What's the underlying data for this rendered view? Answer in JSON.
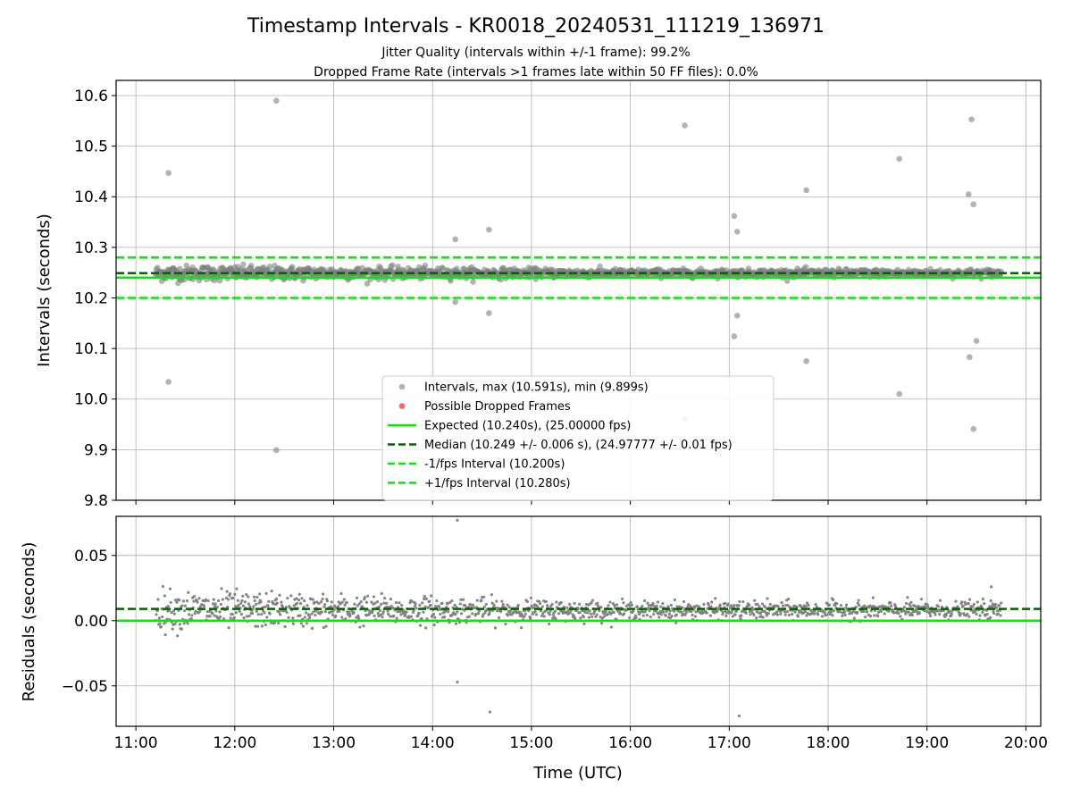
{
  "figure": {
    "title": "Timestamp Intervals - KR0018_20240531_111219_136971",
    "subtitle_1": "Jitter Quality (intervals within +/-1 frame): 99.2%",
    "subtitle_2": "Dropped Frame Rate (intervals >1 frames late within 50 FF files): 0.0%"
  },
  "chart_data": [
    {
      "type": "scatter",
      "panel": "intervals",
      "ylabel": "Intervals (seconds)",
      "xlim": [
        10.8,
        20.15
      ],
      "ylim": [
        9.8,
        10.63
      ],
      "x_unit": "hours UTC",
      "yticks": [
        "9.8",
        "9.9",
        "10.0",
        "10.1",
        "10.2",
        "10.3",
        "10.4",
        "10.5",
        "10.6"
      ],
      "ytick_values": [
        9.8,
        9.9,
        10.0,
        10.1,
        10.2,
        10.3,
        10.4,
        10.5,
        10.6
      ],
      "grid": true,
      "legend_position": "lower-center",
      "legend": [
        {
          "label": "Intervals, max (10.591s), min (9.899s)",
          "kind": "marker",
          "color": "#808080"
        },
        {
          "label": "Possible Dropped Frames",
          "kind": "marker",
          "color": "#ff4040"
        },
        {
          "label": "Expected (10.240s), (25.00000 fps)",
          "kind": "solid",
          "color": "#00ee00"
        },
        {
          "label": "Median (10.249 +/- 0.006 s), (24.97777 +/- 0.01 fps)",
          "kind": "dashed",
          "color": "#006400"
        },
        {
          "label": "-1/fps Interval (10.200s)",
          "kind": "dashed",
          "color": "#00ee00"
        },
        {
          "label": "+1/fps Interval (10.280s)",
          "kind": "dashed",
          "color": "#00ee00"
        }
      ],
      "reference_lines": [
        {
          "name": "expected",
          "y": 10.24,
          "style": "solid",
          "color": "#00ee00"
        },
        {
          "name": "median",
          "y": 10.249,
          "style": "dashed",
          "color": "#006400"
        },
        {
          "name": "minus-1-fps",
          "y": 10.2,
          "style": "dashed",
          "color": "#00ee00"
        },
        {
          "name": "plus-1-fps",
          "y": 10.28,
          "style": "dashed",
          "color": "#00ee00"
        }
      ],
      "series_x_range": [
        11.2,
        19.75
      ],
      "dense_band": {
        "center": 10.249,
        "spread_early": 0.014,
        "spread_late": 0.007
      },
      "outliers": [
        {
          "x": 11.33,
          "y": 10.447
        },
        {
          "x": 11.33,
          "y": 10.034
        },
        {
          "x": 12.42,
          "y": 10.59
        },
        {
          "x": 12.42,
          "y": 9.899
        },
        {
          "x": 14.23,
          "y": 10.316
        },
        {
          "x": 14.23,
          "y": 10.192
        },
        {
          "x": 14.57,
          "y": 10.335
        },
        {
          "x": 14.57,
          "y": 10.17
        },
        {
          "x": 16.55,
          "y": 10.541
        },
        {
          "x": 16.55,
          "y": 9.96
        },
        {
          "x": 17.05,
          "y": 10.362
        },
        {
          "x": 17.08,
          "y": 10.331
        },
        {
          "x": 17.08,
          "y": 10.165
        },
        {
          "x": 17.05,
          "y": 10.124
        },
        {
          "x": 17.78,
          "y": 10.413
        },
        {
          "x": 17.78,
          "y": 10.075
        },
        {
          "x": 18.72,
          "y": 10.475
        },
        {
          "x": 18.72,
          "y": 10.01
        },
        {
          "x": 19.42,
          "y": 10.405
        },
        {
          "x": 19.47,
          "y": 10.385
        },
        {
          "x": 19.45,
          "y": 10.553
        },
        {
          "x": 19.5,
          "y": 10.115
        },
        {
          "x": 19.43,
          "y": 10.083
        },
        {
          "x": 19.47,
          "y": 9.941
        }
      ]
    },
    {
      "type": "scatter",
      "panel": "residuals",
      "ylabel": "Residuals (seconds)",
      "xlabel": "Time (UTC)",
      "xlim": [
        10.8,
        20.15
      ],
      "ylim": [
        -0.081,
        0.08
      ],
      "xticks": [
        "11:00",
        "12:00",
        "13:00",
        "14:00",
        "15:00",
        "16:00",
        "17:00",
        "18:00",
        "19:00",
        "20:00"
      ],
      "xtick_values": [
        11,
        12,
        13,
        14,
        15,
        16,
        17,
        18,
        19,
        20
      ],
      "yticks": [
        "−0.05",
        "0.00",
        "0.05"
      ],
      "ytick_values": [
        -0.05,
        0.0,
        0.05
      ],
      "grid": true,
      "reference_lines": [
        {
          "name": "zero",
          "y": 0.0,
          "style": "solid",
          "color": "#00ee00"
        },
        {
          "name": "median-residual",
          "y": 0.009,
          "style": "dashed",
          "color": "#006400"
        }
      ],
      "dense_band": {
        "center": 0.008,
        "spread_early": 0.014,
        "spread_late": 0.006
      },
      "outliers": [
        {
          "x": 14.25,
          "y": 0.077
        },
        {
          "x": 14.25,
          "y": -0.047
        },
        {
          "x": 14.58,
          "y": -0.07
        },
        {
          "x": 17.1,
          "y": -0.073
        },
        {
          "x": 19.65,
          "y": 0.026
        }
      ]
    }
  ]
}
